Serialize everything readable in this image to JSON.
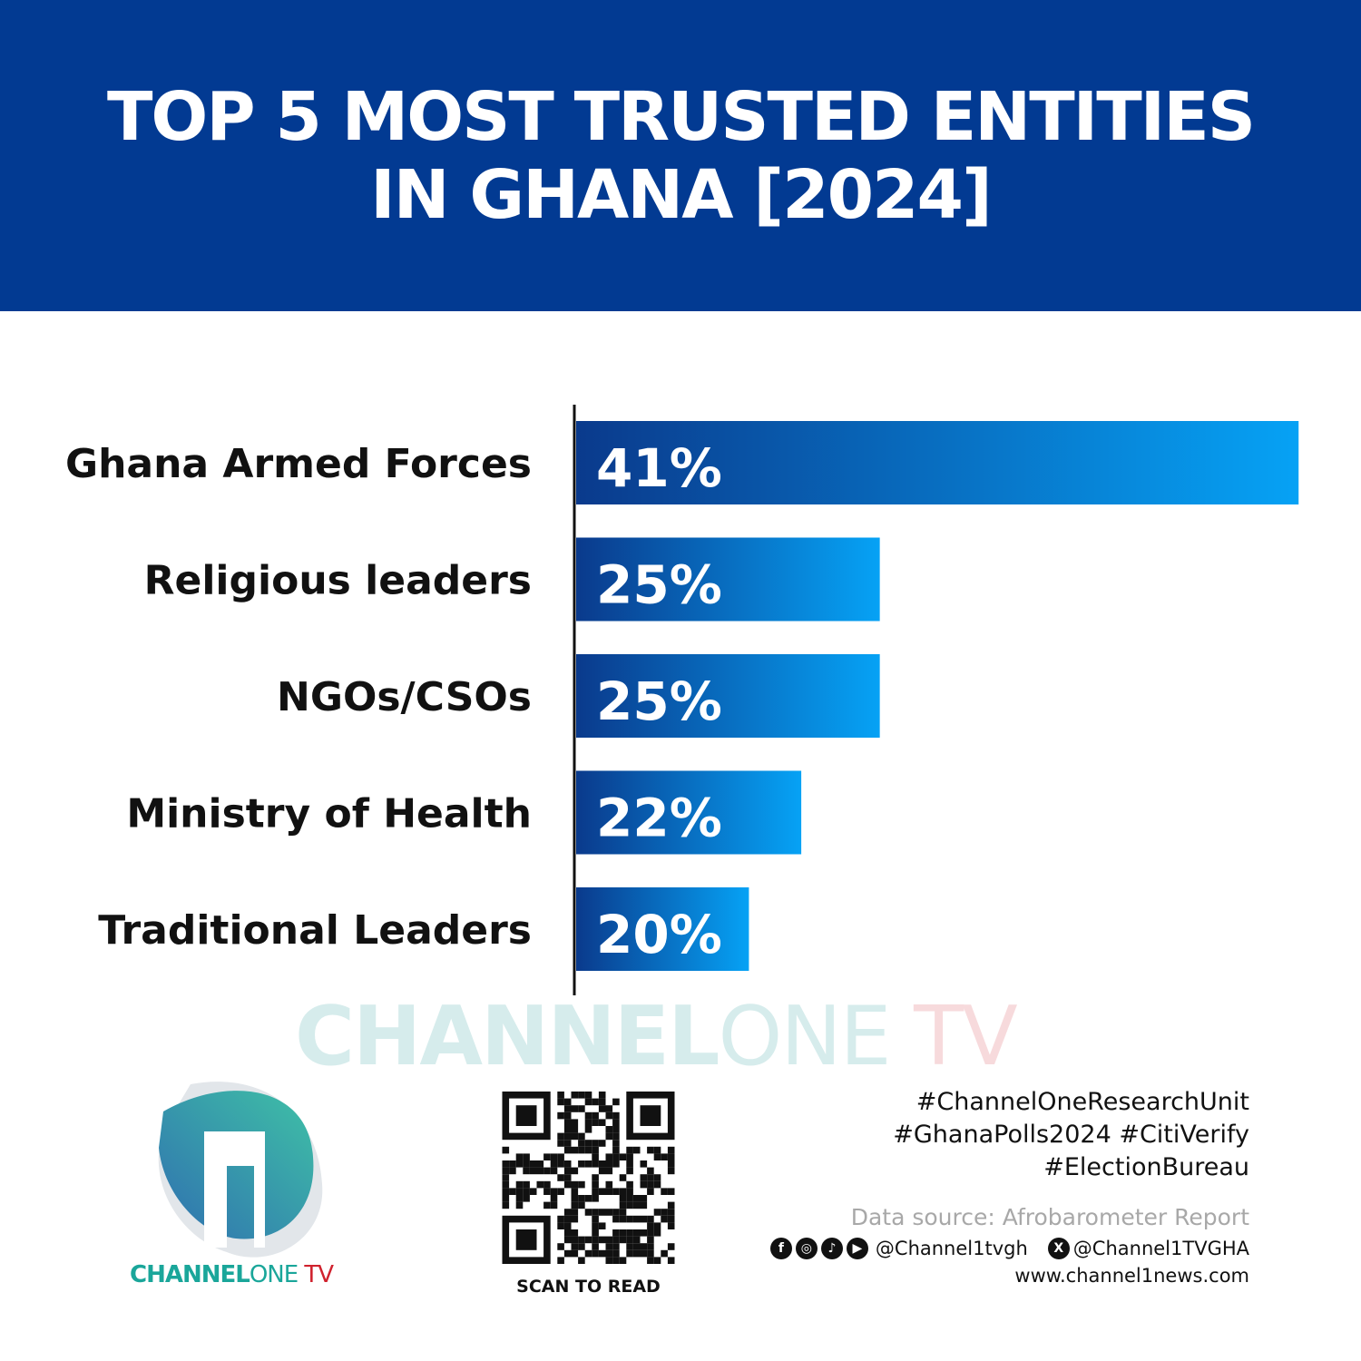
{
  "header": {
    "title_line1": "TOP 5 MOST TRUSTED ENTITIES",
    "title_line2": "IN GHANA [2024]",
    "background": "#023a92"
  },
  "chart_data": {
    "type": "bar",
    "orientation": "horizontal",
    "categories": [
      "Ghana Armed Forces",
      "Religious leaders",
      "NGOs/CSOs",
      "Ministry of Health",
      "Traditional Leaders"
    ],
    "values": [
      41,
      25,
      25,
      22,
      20
    ],
    "data_labels": [
      "41%",
      "25%",
      "25%",
      "22%",
      "20%"
    ],
    "unit": "%",
    "xlim": [
      13.4,
      41.2
    ],
    "grid": false,
    "bar_gradient": [
      "#0a3a8c",
      "#06a2f5"
    ]
  },
  "watermark": {
    "part1": "CHANNEL",
    "part2": "ONE",
    "part3": " TV"
  },
  "brand": {
    "part1": "CHANNEL",
    "part2": "ONE",
    "part3": " TV",
    "colors": {
      "teal": "#1aa69a",
      "red": "#d0222e"
    }
  },
  "qr": {
    "caption": "SCAN TO READ"
  },
  "footer": {
    "tags": [
      "#ChannelOneResearchUnit",
      "#GhanaPolls2024 #CitiVerify",
      "#ElectionBureau"
    ],
    "source": "Data source: Afrobarometer Report",
    "social_icons": [
      "facebook-icon",
      "instagram-icon",
      "tiktok-icon",
      "youtube-icon"
    ],
    "handle1": "@Channel1tvgh",
    "handle2": "@Channel1TVGHA",
    "website": "www.channel1news.com"
  }
}
